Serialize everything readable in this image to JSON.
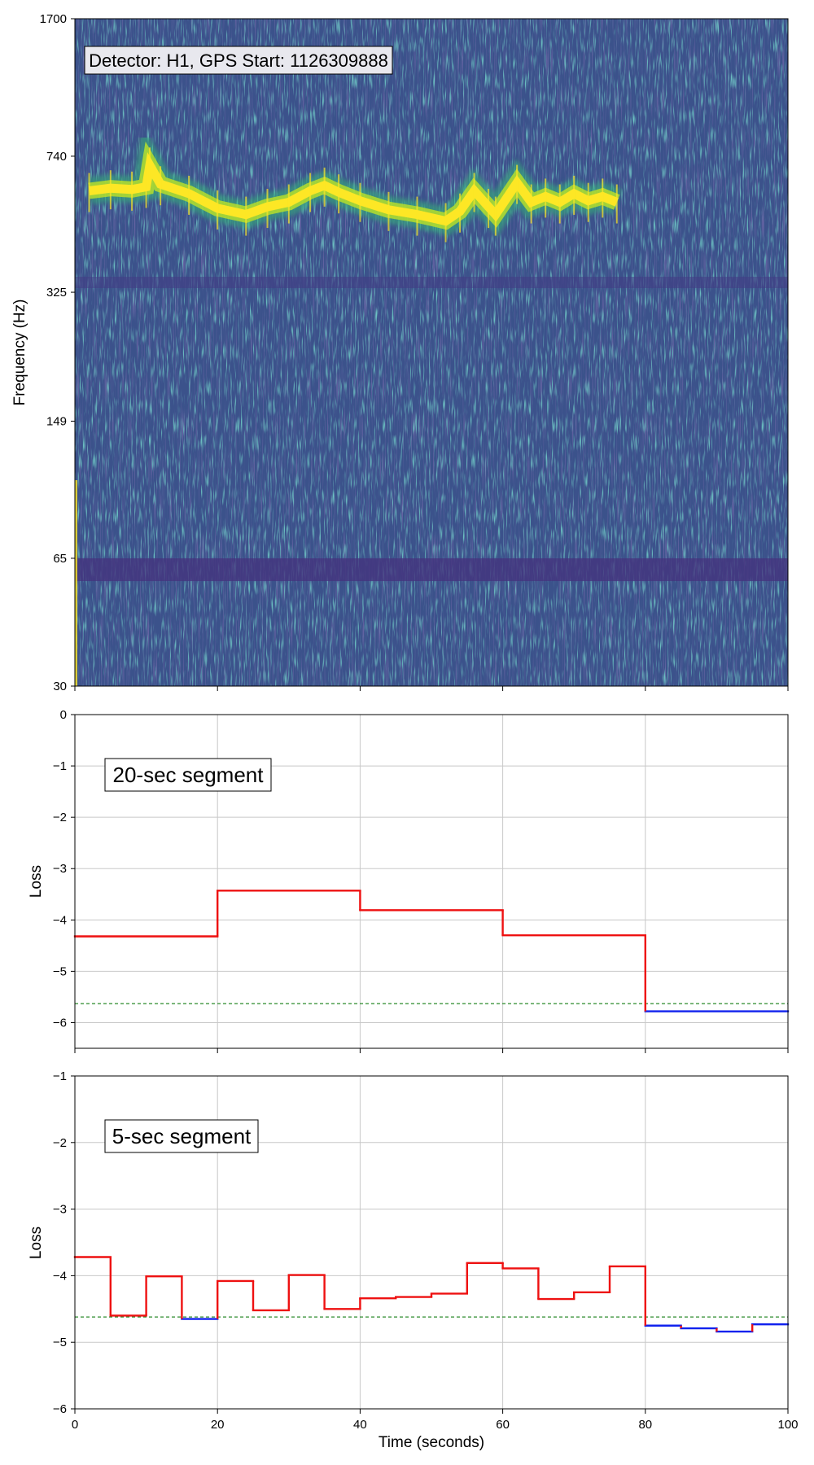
{
  "chart_data": [
    {
      "type": "heatmap",
      "title": "",
      "annotation": "Detector: H1, GPS Start: 1126309888",
      "xlabel": "",
      "ylabel": "Frequency (Hz)",
      "xlim": [
        0,
        100
      ],
      "ylim": [
        30,
        1700
      ],
      "yscale": "log",
      "yticks": [
        "1700",
        "740",
        "325",
        "149",
        "65",
        "30"
      ],
      "colormap": "viridis",
      "track": {
        "description_x": [
          2,
          5,
          8,
          10,
          10.5,
          12,
          16,
          20,
          24,
          27,
          30,
          33,
          35,
          37,
          40,
          44,
          48,
          52,
          54,
          56,
          58,
          59,
          62,
          64,
          66,
          68,
          70,
          72,
          74,
          76
        ],
        "freq": [
          600,
          610,
          605,
          615,
          700,
          625,
          590,
          540,
          520,
          545,
          560,
          600,
          620,
          595,
          565,
          535,
          520,
          500,
          530,
          600,
          545,
          520,
          630,
          560,
          580,
          560,
          590,
          565,
          580,
          560
        ]
      }
    },
    {
      "type": "line",
      "step": true,
      "annotation": "20-sec segment",
      "xlabel": "",
      "ylabel": "Loss",
      "xlim": [
        0,
        100
      ],
      "ylim": [
        -6.5,
        0
      ],
      "xticks": [
        "0",
        "20",
        "40",
        "60",
        "80",
        "100"
      ],
      "yticks": [
        "0",
        "−1",
        "−2",
        "−3",
        "−4",
        "−5",
        "−6"
      ],
      "threshold": -5.63,
      "grid": true,
      "segments": [
        {
          "x0": 0,
          "x1": 20,
          "y": -4.32
        },
        {
          "x0": 20,
          "x1": 40,
          "y": -3.43
        },
        {
          "x0": 40,
          "x1": 60,
          "y": -3.81
        },
        {
          "x0": 60,
          "x1": 80,
          "y": -4.3
        },
        {
          "x0": 80,
          "x1": 100,
          "y": -5.78
        }
      ],
      "above_color": "#ee1111",
      "below_color": "#1122ee",
      "threshold_color": "#2a8a2a"
    },
    {
      "type": "line",
      "step": true,
      "annotation": "5-sec segment",
      "xlabel": "Time (seconds)",
      "ylabel": "Loss",
      "xlim": [
        0,
        100
      ],
      "ylim": [
        -6,
        -1
      ],
      "xticks": [
        "0",
        "20",
        "40",
        "60",
        "80",
        "100"
      ],
      "yticks": [
        "−1",
        "−2",
        "−3",
        "−4",
        "−5",
        "−6"
      ],
      "threshold": -4.62,
      "grid": true,
      "segments": [
        {
          "x0": 0,
          "x1": 5,
          "y": -3.72
        },
        {
          "x0": 5,
          "x1": 10,
          "y": -4.6
        },
        {
          "x0": 10,
          "x1": 15,
          "y": -4.01
        },
        {
          "x0": 15,
          "x1": 20,
          "y": -4.65
        },
        {
          "x0": 20,
          "x1": 25,
          "y": -4.08
        },
        {
          "x0": 25,
          "x1": 30,
          "y": -4.52
        },
        {
          "x0": 30,
          "x1": 35,
          "y": -3.99
        },
        {
          "x0": 35,
          "x1": 40,
          "y": -4.5
        },
        {
          "x0": 40,
          "x1": 45,
          "y": -4.34
        },
        {
          "x0": 45,
          "x1": 50,
          "y": -4.32
        },
        {
          "x0": 50,
          "x1": 55,
          "y": -4.27
        },
        {
          "x0": 55,
          "x1": 60,
          "y": -3.81
        },
        {
          "x0": 60,
          "x1": 65,
          "y": -3.89
        },
        {
          "x0": 65,
          "x1": 70,
          "y": -4.35
        },
        {
          "x0": 70,
          "x1": 75,
          "y": -4.25
        },
        {
          "x0": 75,
          "x1": 80,
          "y": -3.86
        },
        {
          "x0": 80,
          "x1": 85,
          "y": -4.75
        },
        {
          "x0": 85,
          "x1": 90,
          "y": -4.79
        },
        {
          "x0": 90,
          "x1": 95,
          "y": -4.84
        },
        {
          "x0": 95,
          "x1": 100,
          "y": -4.73
        }
      ],
      "above_color": "#ee1111",
      "below_color": "#1122ee",
      "threshold_color": "#2a8a2a"
    }
  ]
}
